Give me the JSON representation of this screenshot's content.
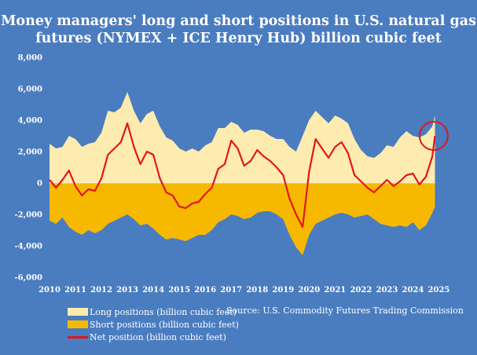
{
  "title_line1": "Money managers' long and short positions in U.S. natural gas",
  "title_line2": "futures (NYMEX + ICE Henry Hub) billion cubic feet",
  "source": "Source: U.S. Commodity Futures Trading Commission",
  "colors": {
    "background": "#4a7cc0",
    "long": "#fdebb0",
    "short": "#f7b900",
    "net": "#e3161b",
    "highlight_circle": "#e3161b"
  },
  "chart_data": {
    "type": "area",
    "title": "Money managers' long and short positions in U.S. natural gas futures (NYMEX + ICE Henry Hub) billion cubic feet",
    "xlabel": "",
    "ylabel": "",
    "ylim": [
      -6000,
      8000
    ],
    "xlim": [
      2010,
      2025.5
    ],
    "yticks": [
      8000,
      6000,
      4000,
      2000,
      0,
      -2000,
      -4000,
      -6000
    ],
    "ytick_labels": [
      "8,000",
      "6,000",
      "4,000",
      "2,000",
      "0",
      "-2,000",
      "-4,000",
      "-6,000"
    ],
    "xtick_labels": [
      "2010",
      "2011",
      "2012",
      "2013",
      "2014",
      "2015",
      "2016",
      "2017",
      "2018",
      "2019",
      "2020",
      "2021",
      "2022",
      "2023",
      "2024",
      "2025"
    ],
    "highlight": {
      "x": 2024.8,
      "y": 3000,
      "note": "red circle around latest net position"
    },
    "x": [
      2010.0,
      2010.25,
      2010.5,
      2010.75,
      2011.0,
      2011.25,
      2011.5,
      2011.75,
      2012.0,
      2012.25,
      2012.5,
      2012.75,
      2013.0,
      2013.25,
      2013.5,
      2013.75,
      2014.0,
      2014.25,
      2014.5,
      2014.75,
      2015.0,
      2015.25,
      2015.5,
      2015.75,
      2016.0,
      2016.25,
      2016.5,
      2016.75,
      2017.0,
      2017.25,
      2017.5,
      2017.75,
      2018.0,
      2018.25,
      2018.5,
      2018.75,
      2019.0,
      2019.25,
      2019.5,
      2019.75,
      2020.0,
      2020.25,
      2020.5,
      2020.75,
      2021.0,
      2021.25,
      2021.5,
      2021.75,
      2022.0,
      2022.25,
      2022.5,
      2022.75,
      2023.0,
      2023.25,
      2023.5,
      2023.75,
      2024.0,
      2024.25,
      2024.5,
      2024.75,
      2024.85
    ],
    "series": [
      {
        "name": "Long positions (billion cubic feet)",
        "values": [
          2500,
          2200,
          2300,
          3000,
          2800,
          2300,
          2500,
          2600,
          3200,
          4600,
          4500,
          4800,
          5800,
          4600,
          3800,
          4400,
          4600,
          3600,
          2900,
          2700,
          2200,
          2000,
          2200,
          2000,
          2400,
          2600,
          3500,
          3500,
          3900,
          3700,
          3200,
          3400,
          3400,
          3300,
          3000,
          2800,
          2800,
          2300,
          2000,
          3000,
          4000,
          4600,
          4200,
          3800,
          4300,
          4100,
          3800,
          2800,
          2100,
          1700,
          1600,
          1900,
          2400,
          2300,
          2900,
          3300,
          3000,
          2900,
          3100,
          3600,
          4300
        ]
      },
      {
        "name": "Short positions (billion cubic feet)",
        "values": [
          -2400,
          -2600,
          -2200,
          -2800,
          -3100,
          -3300,
          -3000,
          -3200,
          -3000,
          -2600,
          -2400,
          -2200,
          -2000,
          -2300,
          -2700,
          -2600,
          -2900,
          -3300,
          -3600,
          -3500,
          -3600,
          -3700,
          -3500,
          -3300,
          -3300,
          -3000,
          -2500,
          -2300,
          -2000,
          -2100,
          -2300,
          -2200,
          -1900,
          -1800,
          -1800,
          -2000,
          -2300,
          -3300,
          -4100,
          -4600,
          -3300,
          -2600,
          -2400,
          -2200,
          -2000,
          -1900,
          -2000,
          -2200,
          -2100,
          -2000,
          -2300,
          -2600,
          -2700,
          -2800,
          -2700,
          -2800,
          -2500,
          -3000,
          -2700,
          -1900,
          -1500
        ]
      },
      {
        "name": "Net position (billion cubic feet)",
        "values": [
          200,
          -300,
          200,
          800,
          -200,
          -800,
          -400,
          -500,
          300,
          1800,
          2200,
          2600,
          3800,
          2300,
          1200,
          2000,
          1800,
          300,
          -600,
          -800,
          -1500,
          -1600,
          -1300,
          -1200,
          -700,
          -300,
          900,
          1200,
          2700,
          2200,
          1100,
          1400,
          2100,
          1700,
          1400,
          1000,
          500,
          -1000,
          -2000,
          -2800,
          700,
          2800,
          2200,
          1600,
          2300,
          2600,
          1900,
          500,
          100,
          -300,
          -600,
          -200,
          200,
          -200,
          100,
          500,
          600,
          -100,
          400,
          1700,
          3000
        ]
      }
    ]
  }
}
